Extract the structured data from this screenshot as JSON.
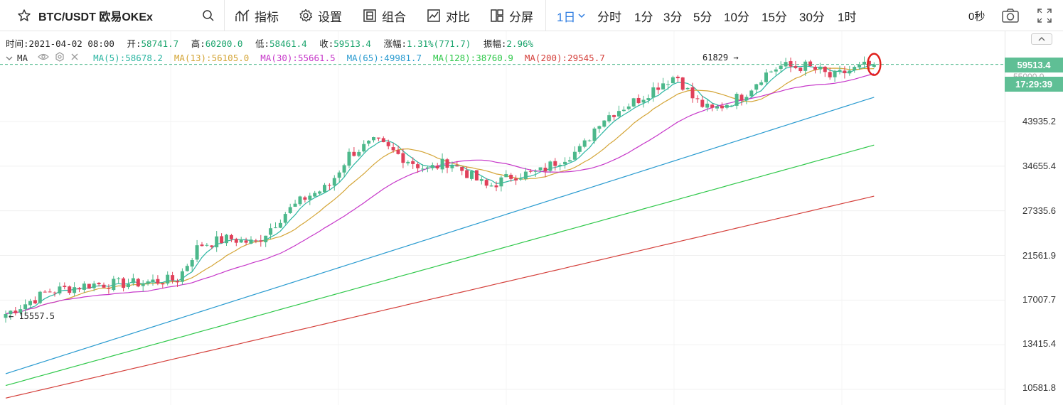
{
  "toolbar": {
    "symbol": "BTC/USDT 欧易OKEx",
    "indicators_label": "指标",
    "settings_label": "设置",
    "combine_label": "组合",
    "compare_label": "对比",
    "split_label": "分屏",
    "active_period": "1日",
    "periods": [
      "分时",
      "1分",
      "3分",
      "5分",
      "10分",
      "15分",
      "30分",
      "1时"
    ],
    "countdown": "0秒"
  },
  "info": {
    "time_label": "时间:",
    "time": "2021-04-02 08:00",
    "open_label": "开:",
    "open": "58741.7",
    "high_label": "高:",
    "high": "60200.0",
    "low_label": "低:",
    "low": "58461.4",
    "close_label": "收:",
    "close": "59513.4",
    "change_label": "涨幅:",
    "change": "1.31%(771.7)",
    "amplitude_label": "振幅:",
    "amplitude": "2.96%"
  },
  "ma_bar": {
    "name": "MA",
    "items": [
      {
        "label": "MA(5):58678.2",
        "color": "#2cb6a2"
      },
      {
        "label": "MA(13):56105.0",
        "color": "#d4a537"
      },
      {
        "label": "MA(30):55661.5",
        "color": "#c637c9"
      },
      {
        "label": "MA(65):49981.7",
        "color": "#2a9bd0"
      },
      {
        "label": "MA(128):38760.9",
        "color": "#2fc84a"
      },
      {
        "label": "MA(200):29545.7",
        "color": "#d43f3a"
      }
    ]
  },
  "axis": {
    "ticks": [
      "43935.2",
      "34655.4",
      "27335.6",
      "21561.9",
      "17007.7",
      "13415.4",
      "10581.8"
    ],
    "last_price": "59513.4",
    "countdown": "17:29:39",
    "hidden_price": "55000.0"
  },
  "annotations": {
    "max_label": "61829",
    "min_label": "15557.5"
  },
  "colors": {
    "up": "#4cb88b",
    "down": "#e0405a",
    "last_price_bg": "#5fbf95",
    "accent": "#2f7de1",
    "marker": "#e0201c"
  },
  "chart_data": {
    "type": "candlestick",
    "scale": "log",
    "series": [
      {
        "name": "MA(5)",
        "color": "#2cb6a2",
        "last": 58678.2
      },
      {
        "name": "MA(13)",
        "color": "#d4a537",
        "last": 56105.0
      },
      {
        "name": "MA(30)",
        "color": "#c637c9",
        "last": 55661.5
      },
      {
        "name": "MA(65)",
        "color": "#2a9bd0",
        "last": 49981.7
      },
      {
        "name": "MA(128)",
        "color": "#2fc84a",
        "last": 38760.9
      },
      {
        "name": "MA(200)",
        "color": "#d43f3a",
        "last": 29545.7
      }
    ],
    "ylim": [
      10000,
      66000
    ],
    "y_ticks": [
      10581.8,
      13415.4,
      17007.7,
      21561.9,
      27335.6,
      34655.4,
      43935.2
    ],
    "max": 61829,
    "min": 15557.5,
    "last_candle": {
      "open": 58741.7,
      "high": 60200.0,
      "low": 58461.4,
      "close": 59513.4
    },
    "grid": true
  }
}
